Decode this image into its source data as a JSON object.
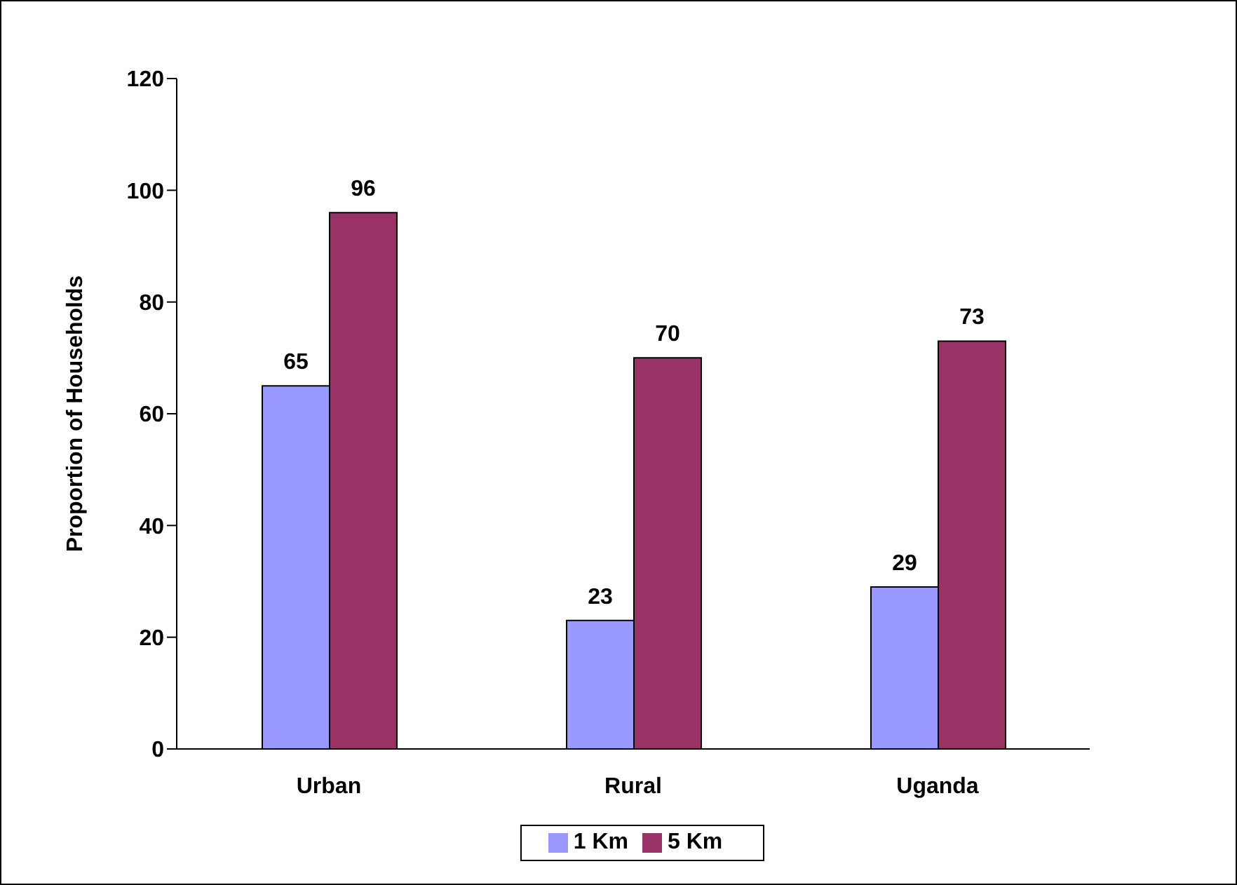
{
  "chart_data": {
    "type": "bar",
    "ylabel": "Proportion of Households",
    "categories": [
      "Urban",
      "Rural",
      "Uganda"
    ],
    "series": [
      {
        "name": "1 Km",
        "color": "#9999ff",
        "values": [
          65,
          23,
          29
        ]
      },
      {
        "name": "5 Km",
        "color": "#993366",
        "values": [
          96,
          70,
          73
        ]
      }
    ],
    "ylim": [
      0,
      120
    ],
    "yticks": [
      0,
      20,
      40,
      60,
      80,
      100,
      120
    ],
    "grid": false,
    "legend": "bottom",
    "data_labels": true
  }
}
